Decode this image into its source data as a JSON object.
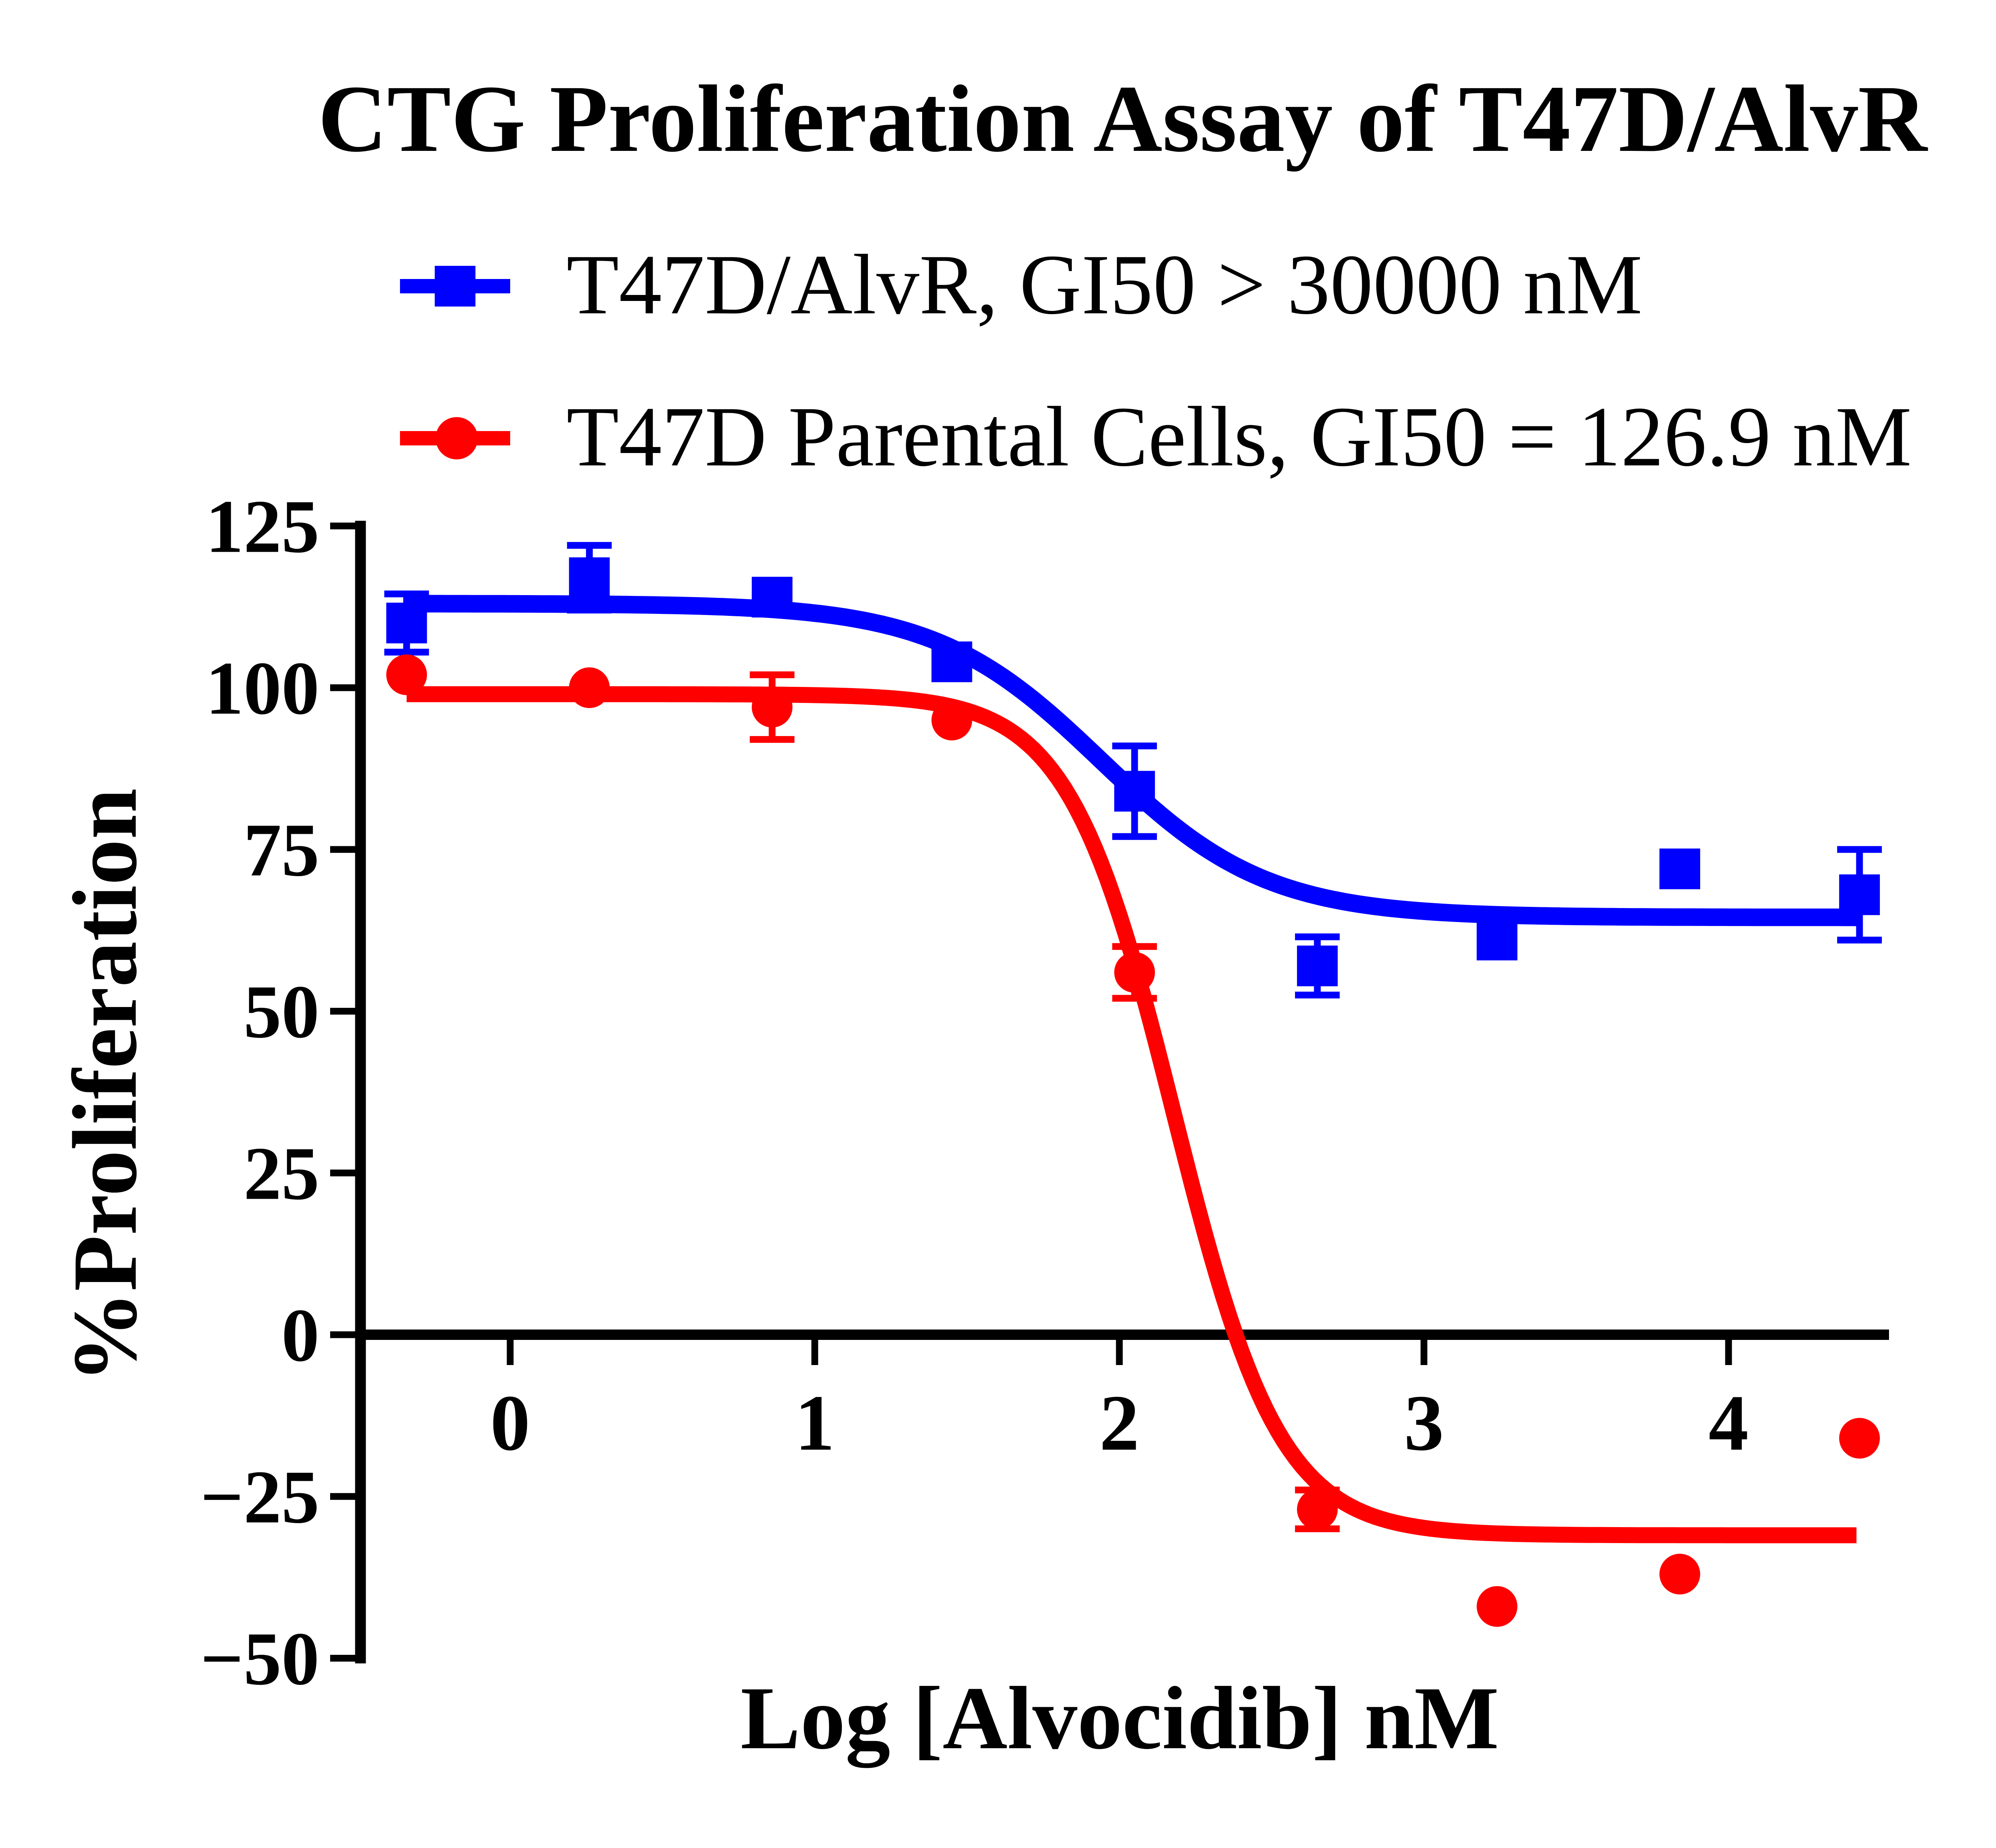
{
  "chart_data": {
    "type": "scatter-line",
    "title": "CTG Proliferation Assay of T47D/AlvR",
    "xlabel": "Log [Alvocidib] nM",
    "ylabel": "%Proliferation",
    "grid": false,
    "legend_position": "top-left-above-plot",
    "xlim": [
      -0.51,
      4.53
    ],
    "ylim": [
      -50.8,
      125.8
    ],
    "x_ticks": [
      {
        "value": 0,
        "label": "0"
      },
      {
        "value": 1,
        "label": "1"
      },
      {
        "value": 2,
        "label": "2"
      },
      {
        "value": 3,
        "label": "3"
      },
      {
        "value": 4,
        "label": "4"
      }
    ],
    "y_ticks": [
      {
        "value": 125,
        "label": "125"
      },
      {
        "value": 100,
        "label": "100"
      },
      {
        "value": 75,
        "label": "75"
      },
      {
        "value": 50,
        "label": "50"
      },
      {
        "value": 25,
        "label": "25"
      },
      {
        "value": 0,
        "label": "0"
      },
      {
        "value": -25,
        "label": "-25"
      },
      {
        "value": -50,
        "label": "-50"
      }
    ],
    "series": [
      {
        "name": "T47D/AlvR, GI50 > 30000 nM",
        "color": "#0000ff",
        "marker": "square",
        "points": [
          {
            "x": -0.34,
            "y": 110,
            "err": 4.5
          },
          {
            "x": 0.26,
            "y": 117,
            "err": 5
          },
          {
            "x": 0.86,
            "y": 114,
            "err": 0
          },
          {
            "x": 1.45,
            "y": 104,
            "err": 0
          },
          {
            "x": 2.05,
            "y": 84,
            "err": 7
          },
          {
            "x": 2.65,
            "y": 57,
            "err": 4.5
          },
          {
            "x": 3.24,
            "y": 61,
            "err": 0
          },
          {
            "x": 3.84,
            "y": 72,
            "err": 0
          },
          {
            "x": 4.43,
            "y": 68,
            "err": 7
          }
        ],
        "fit_curve": {
          "top": 113,
          "bottom": 64.5,
          "log_gi50": 1.94,
          "hill": 1.6
        }
      },
      {
        "name": "T47D Parental Cells, GI50 = 126.9 nM",
        "color": "#ff0000",
        "marker": "circle",
        "points": [
          {
            "x": -0.34,
            "y": 102,
            "err": 0
          },
          {
            "x": 0.26,
            "y": 100,
            "err": 0
          },
          {
            "x": 0.86,
            "y": 97,
            "err": 5
          },
          {
            "x": 1.45,
            "y": 95,
            "err": 0
          },
          {
            "x": 2.05,
            "y": 56,
            "err": 4
          },
          {
            "x": 2.65,
            "y": -27,
            "err": 3
          },
          {
            "x": 3.24,
            "y": -42,
            "err": 0
          },
          {
            "x": 3.84,
            "y": -37,
            "err": 0
          },
          {
            "x": 4.43,
            "y": -16,
            "err": 0
          }
        ],
        "fit_curve": {
          "top": 99,
          "bottom": -31,
          "log_gi50": 2.18,
          "hill": 2.5
        }
      }
    ],
    "colors": {
      "axis": "#000000",
      "background": "#ffffff",
      "series_alvr": "#0000ff",
      "series_parental": "#ff0000"
    }
  }
}
